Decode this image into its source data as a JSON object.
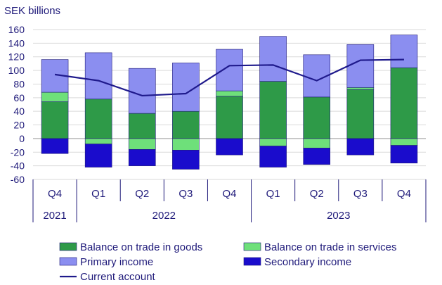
{
  "chart_data": {
    "type": "bar",
    "ylabel": "SEK billions",
    "ylim": [
      -60,
      160
    ],
    "yticks": [
      160,
      140,
      120,
      100,
      80,
      60,
      40,
      20,
      0,
      -20,
      -40,
      -60
    ],
    "grid": true,
    "categories": [
      "Q4",
      "Q1",
      "Q2",
      "Q3",
      "Q4",
      "Q1",
      "Q2",
      "Q3",
      "Q4"
    ],
    "years": [
      {
        "label": "2021",
        "quarters": 1
      },
      {
        "label": "2022",
        "quarters": 4
      },
      {
        "label": "2023",
        "quarters": 4
      }
    ],
    "series": [
      {
        "name": "Balance on trade in goods",
        "kind": "bar",
        "color": "#2e9a48",
        "values": [
          54,
          58,
          37,
          40,
          62,
          84,
          61,
          72,
          104
        ]
      },
      {
        "name": "Balance on trade in services",
        "kind": "bar",
        "color": "#6ee07a",
        "values": [
          14,
          -8,
          -16,
          -17,
          8,
          -11,
          -14,
          3,
          -10
        ]
      },
      {
        "name": "Primary income",
        "kind": "bar",
        "color": "#8b8ef0",
        "values": [
          48,
          68,
          66,
          71,
          61,
          66,
          62,
          63,
          48
        ]
      },
      {
        "name": "Secondary income",
        "kind": "bar",
        "color": "#1a0ccc",
        "values": [
          -22,
          -34,
          -24,
          -28,
          -24,
          -31,
          -24,
          -24,
          -26
        ]
      },
      {
        "name": "Current account",
        "kind": "line",
        "color": "#1f1a8c",
        "values": [
          94,
          85,
          63,
          66,
          107,
          108,
          85,
          115,
          116
        ]
      }
    ],
    "legend_position": "bottom"
  }
}
